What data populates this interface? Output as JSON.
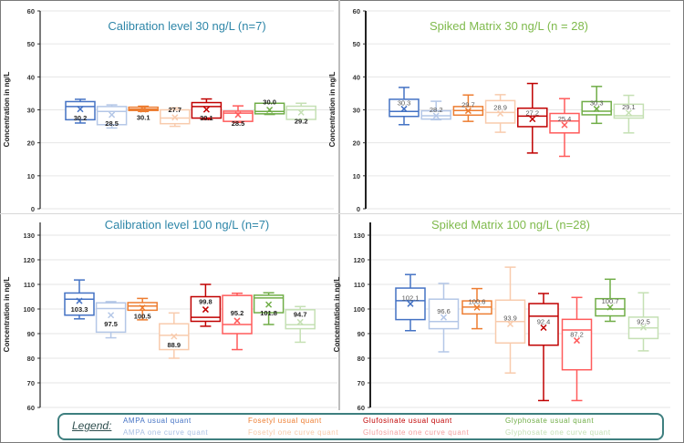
{
  "chart_data": [
    {
      "type": "box",
      "title": "Calibration level 30 ng/L (n=7)",
      "title_color": "#2e86a8",
      "ylabel": "Concentration in ng/L",
      "ylim": [
        0,
        60
      ],
      "yticks": [
        0,
        10,
        20,
        30,
        40,
        50,
        60
      ],
      "grid": true,
      "series": [
        {
          "name": "AMPA usual quant",
          "min": 26,
          "q1": 27,
          "median": 31,
          "q3": 32.5,
          "max": 33.2,
          "mean": 30.2,
          "label": "30.2"
        },
        {
          "name": "AMPA one curve quant",
          "min": 24.5,
          "q1": 25.5,
          "median": 29.5,
          "q3": 31,
          "max": 31.5,
          "mean": 28.5,
          "label": "28.5"
        },
        {
          "name": "Fosetyl usual quant",
          "min": 29.5,
          "q1": 29.8,
          "median": 30.2,
          "q3": 30.8,
          "max": 31.1,
          "mean": 30.1,
          "label": "30.1"
        },
        {
          "name": "Fosetyl one curve quant",
          "min": 25,
          "q1": 25.8,
          "median": 27.5,
          "q3": 30,
          "max": 30.6,
          "mean": 27.7,
          "label": "27.7"
        },
        {
          "name": "Glufosinate usual quant",
          "min": 27.1,
          "q1": 27.5,
          "median": 31,
          "q3": 32.2,
          "max": 33.3,
          "mean": 30.1,
          "label": "30.1"
        },
        {
          "name": "Glufosinate one curve quant",
          "min": 26.2,
          "q1": 26.5,
          "median": 29,
          "q3": 29.6,
          "max": 31.2,
          "mean": 28.5,
          "label": "28.5"
        },
        {
          "name": "Glyphosate usual quant",
          "min": 28.6,
          "q1": 28.8,
          "median": 29.5,
          "q3": 32,
          "max": 32,
          "mean": 30.0,
          "label": "30.0"
        },
        {
          "name": "Glyphosate one curve quant",
          "min": 27.1,
          "q1": 27.1,
          "median": 30,
          "q3": 31.1,
          "max": 32,
          "mean": 29.2,
          "label": "29.2"
        }
      ]
    },
    {
      "type": "box",
      "title": "Spiked Matrix 30 ng/L (n = 28)",
      "title_color": "#7fba4c",
      "ylabel": "Concentration in ng/L",
      "ylim": [
        0,
        60
      ],
      "yticks": [
        0,
        10,
        20,
        30,
        40,
        50,
        60
      ],
      "grid": true,
      "series": [
        {
          "name": "AMPA usual quant",
          "min": 25.5,
          "q1": 28,
          "median": 29.5,
          "q3": 33.2,
          "max": 36.8,
          "mean": 30.3,
          "label": "30.3"
        },
        {
          "name": "AMPA one curve quant",
          "min": 27,
          "q1": 27.2,
          "median": 28.2,
          "q3": 29.7,
          "max": 32.6,
          "mean": 28.2,
          "label": "28.2"
        },
        {
          "name": "Fosetyl usual quant",
          "min": 26.5,
          "q1": 28.4,
          "median": 29.8,
          "q3": 31,
          "max": 34.5,
          "mean": 29.7,
          "label": "29.7"
        },
        {
          "name": "Fosetyl one curve quant",
          "min": 23.2,
          "q1": 26,
          "median": 29.2,
          "q3": 32.8,
          "max": 34.6,
          "mean": 28.9,
          "label": "28.9"
        },
        {
          "name": "Glufosinate usual quant",
          "min": 16.9,
          "q1": 24.9,
          "median": 28.1,
          "q3": 30.5,
          "max": 38,
          "mean": 27.2,
          "label": "27.2"
        },
        {
          "name": "Glufosinate one curve quant",
          "min": 15.9,
          "q1": 23,
          "median": 26.6,
          "q3": 28.9,
          "max": 33.4,
          "mean": 25.4,
          "label": "25.4"
        },
        {
          "name": "Glyphosate usual quant",
          "min": 25.9,
          "q1": 28.5,
          "median": 29.6,
          "q3": 32.5,
          "max": 37.1,
          "mean": 30.3,
          "label": "30.3"
        },
        {
          "name": "Glyphosate one curve quant",
          "min": 23,
          "q1": 27.5,
          "median": 28.2,
          "q3": 31.7,
          "max": 34.4,
          "mean": 29.1,
          "label": "29.1"
        }
      ]
    },
    {
      "type": "box",
      "title": "Calibration level 100 ng/L (n=7)",
      "title_color": "#2e86a8",
      "ylabel": "Concentration in ng/L",
      "ylim": [
        60,
        135
      ],
      "yticks": [
        60,
        70,
        80,
        90,
        100,
        110,
        120,
        130
      ],
      "grid": true,
      "series": [
        {
          "name": "AMPA usual quant",
          "min": 96,
          "q1": 97.5,
          "median": 104,
          "q3": 106.5,
          "max": 111.8,
          "mean": 103.3,
          "label": "103.3"
        },
        {
          "name": "AMPA one curve quant",
          "min": 88.3,
          "q1": 90.6,
          "median": 100.2,
          "q3": 102.5,
          "max": 103,
          "mean": 97.5,
          "label": "97.5"
        },
        {
          "name": "Fosetyl usual quant",
          "min": 95.6,
          "q1": 99.5,
          "median": 101.2,
          "q3": 102.6,
          "max": 104.3,
          "mean": 100.5,
          "label": "100.5"
        },
        {
          "name": "Fosetyl one curve quant",
          "min": 80,
          "q1": 83.5,
          "median": 89.3,
          "q3": 94,
          "max": 98.4,
          "mean": 88.9,
          "label": "88.9"
        },
        {
          "name": "Glufosinate usual quant",
          "min": 93,
          "q1": 95,
          "median": 96.6,
          "q3": 105,
          "max": 110,
          "mean": 99.8,
          "label": "99.8"
        },
        {
          "name": "Glufosinate one curve quant",
          "min": 83.5,
          "q1": 90,
          "median": 93.7,
          "q3": 105.5,
          "max": 106.4,
          "mean": 95.2,
          "label": "95.2"
        },
        {
          "name": "Glyphosate usual quant",
          "min": 93.7,
          "q1": 98.5,
          "median": 104.5,
          "q3": 105.6,
          "max": 106.6,
          "mean": 101.8,
          "label": "101.8"
        },
        {
          "name": "Glyphosate one curve quant",
          "min": 86.5,
          "q1": 92,
          "median": 93.6,
          "q3": 99.7,
          "max": 101,
          "mean": 94.7,
          "label": "94.7"
        }
      ]
    },
    {
      "type": "box",
      "title": "Spiked Matrix 100 ng/L (n=28)",
      "title_color": "#7fba4c",
      "ylabel": "Concentration in ng/L",
      "ylim": [
        60,
        135
      ],
      "yticks": [
        60,
        70,
        80,
        90,
        100,
        110,
        120,
        130
      ],
      "grid": true,
      "series": [
        {
          "name": "AMPA usual quant",
          "min": 91.2,
          "q1": 95.7,
          "median": 103.4,
          "q3": 108.5,
          "max": 114,
          "mean": 102.1,
          "label": "102.1"
        },
        {
          "name": "AMPA one curve quant",
          "min": 82.6,
          "q1": 92,
          "median": 94.9,
          "q3": 104,
          "max": 110.4,
          "mean": 96.6,
          "label": "96.6"
        },
        {
          "name": "Fosetyl usual quant",
          "min": 92,
          "q1": 98,
          "median": 100.8,
          "q3": 103.3,
          "max": 108.3,
          "mean": 100.6,
          "label": "100.6"
        },
        {
          "name": "Fosetyl one curve quant",
          "min": 74,
          "q1": 86.2,
          "median": 94.9,
          "q3": 103.6,
          "max": 117,
          "mean": 93.9,
          "label": "93.9"
        },
        {
          "name": "Glufosinate usual quant",
          "min": 62.8,
          "q1": 85.3,
          "median": 97.1,
          "q3": 102.2,
          "max": 106.3,
          "mean": 92.4,
          "label": "92.4"
        },
        {
          "name": "Glufosinate one curve quant",
          "min": 62.8,
          "q1": 75.3,
          "median": 91.5,
          "q3": 95.8,
          "max": 104.7,
          "mean": 87.2,
          "label": "87.2"
        },
        {
          "name": "Glyphosate usual quant",
          "min": 95,
          "q1": 97.2,
          "median": 100,
          "q3": 104.2,
          "max": 112.1,
          "mean": 100.7,
          "label": "100.7"
        },
        {
          "name": "Glyphosate one curve quant",
          "min": 83,
          "q1": 88,
          "median": 92.3,
          "q3": 96.7,
          "max": 106.6,
          "mean": 92.5,
          "label": "92.5"
        }
      ]
    }
  ],
  "series_colors": [
    "#4472c4",
    "#b4c7e7",
    "#ed7d31",
    "#f8cbad",
    "#c00000",
    "#ff5b5b",
    "#70ad47",
    "#c5e0b4"
  ],
  "legend": {
    "title": "Legend:",
    "items": [
      {
        "label": "AMPA usual quant",
        "color": "#4472c4"
      },
      {
        "label": "AMPA one curve quant",
        "color": "#a9bfe3"
      },
      {
        "label": "Fosetyl usual quant",
        "color": "#ed7d31"
      },
      {
        "label": "Fosetyl one curve quant",
        "color": "#f8c9a8"
      },
      {
        "label": "Glufosinate usual quant",
        "color": "#c00000"
      },
      {
        "label": "Glufosinate one curve quant",
        "color": "#f4a0a0"
      },
      {
        "label": "Glyphosate usual quant",
        "color": "#70ad47"
      },
      {
        "label": "Glyphosate one curve quant",
        "color": "#c5e0b4"
      }
    ]
  }
}
